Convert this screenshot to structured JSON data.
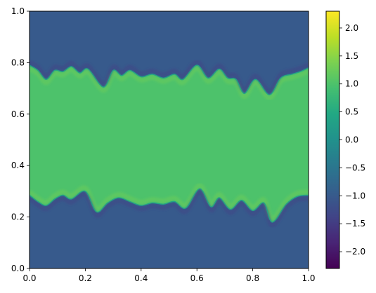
{
  "chart_data": {
    "type": "heatmap",
    "title": "",
    "xlabel": "",
    "ylabel": "",
    "xlim": [
      0,
      1
    ],
    "ylim": [
      0,
      1
    ],
    "grid": false,
    "x_ticks": [
      {
        "value": 0.0,
        "label": "0.0"
      },
      {
        "value": 0.2,
        "label": "0.2"
      },
      {
        "value": 0.4,
        "label": "0.4"
      },
      {
        "value": 0.6,
        "label": "0.6"
      },
      {
        "value": 0.8,
        "label": "0.8"
      },
      {
        "value": 1.0,
        "label": "1.0"
      }
    ],
    "y_ticks": [
      {
        "value": 0.0,
        "label": "0.0"
      },
      {
        "value": 0.2,
        "label": "0.2"
      },
      {
        "value": 0.4,
        "label": "0.4"
      },
      {
        "value": 0.6,
        "label": "0.6"
      },
      {
        "value": 0.8,
        "label": "0.8"
      },
      {
        "value": 1.0,
        "label": "1.0"
      }
    ],
    "colormap": "viridis",
    "colorbar": {
      "range": [
        -2.3,
        2.3
      ],
      "ticks": [
        {
          "value": 2.0,
          "label": "2.0"
        },
        {
          "value": 1.5,
          "label": "1.5"
        },
        {
          "value": 1.0,
          "label": "1.0"
        },
        {
          "value": 0.5,
          "label": "0.5"
        },
        {
          "value": 0.0,
          "label": "0.0"
        },
        {
          "value": -0.5,
          "label": "−0.5"
        },
        {
          "value": -1.0,
          "label": "−1.0"
        },
        {
          "value": -1.5,
          "label": "−1.5"
        },
        {
          "value": -2.0,
          "label": "−2.0"
        }
      ]
    },
    "field": {
      "inner_value": 1.0,
      "outer_value": -1.0,
      "upper_interface": [
        {
          "x": 0.0,
          "y": 0.79
        },
        {
          "x": 0.03,
          "y": 0.77
        },
        {
          "x": 0.06,
          "y": 0.735
        },
        {
          "x": 0.09,
          "y": 0.77
        },
        {
          "x": 0.12,
          "y": 0.765
        },
        {
          "x": 0.15,
          "y": 0.785
        },
        {
          "x": 0.18,
          "y": 0.76
        },
        {
          "x": 0.21,
          "y": 0.775
        },
        {
          "x": 0.265,
          "y": 0.705
        },
        {
          "x": 0.3,
          "y": 0.77
        },
        {
          "x": 0.33,
          "y": 0.75
        },
        {
          "x": 0.36,
          "y": 0.77
        },
        {
          "x": 0.4,
          "y": 0.745
        },
        {
          "x": 0.44,
          "y": 0.755
        },
        {
          "x": 0.48,
          "y": 0.74
        },
        {
          "x": 0.52,
          "y": 0.755
        },
        {
          "x": 0.55,
          "y": 0.735
        },
        {
          "x": 0.6,
          "y": 0.79
        },
        {
          "x": 0.64,
          "y": 0.74
        },
        {
          "x": 0.68,
          "y": 0.775
        },
        {
          "x": 0.71,
          "y": 0.74
        },
        {
          "x": 0.74,
          "y": 0.735
        },
        {
          "x": 0.77,
          "y": 0.68
        },
        {
          "x": 0.81,
          "y": 0.735
        },
        {
          "x": 0.86,
          "y": 0.675
        },
        {
          "x": 0.9,
          "y": 0.74
        },
        {
          "x": 0.94,
          "y": 0.755
        },
        {
          "x": 0.97,
          "y": 0.765
        },
        {
          "x": 1.0,
          "y": 0.78
        }
      ],
      "lower_interface": [
        {
          "x": 0.0,
          "y": 0.285
        },
        {
          "x": 0.03,
          "y": 0.26
        },
        {
          "x": 0.06,
          "y": 0.245
        },
        {
          "x": 0.09,
          "y": 0.27
        },
        {
          "x": 0.12,
          "y": 0.285
        },
        {
          "x": 0.15,
          "y": 0.27
        },
        {
          "x": 0.2,
          "y": 0.3
        },
        {
          "x": 0.24,
          "y": 0.22
        },
        {
          "x": 0.28,
          "y": 0.255
        },
        {
          "x": 0.32,
          "y": 0.275
        },
        {
          "x": 0.36,
          "y": 0.26
        },
        {
          "x": 0.4,
          "y": 0.245
        },
        {
          "x": 0.44,
          "y": 0.255
        },
        {
          "x": 0.48,
          "y": 0.25
        },
        {
          "x": 0.52,
          "y": 0.26
        },
        {
          "x": 0.56,
          "y": 0.235
        },
        {
          "x": 0.61,
          "y": 0.31
        },
        {
          "x": 0.65,
          "y": 0.24
        },
        {
          "x": 0.68,
          "y": 0.275
        },
        {
          "x": 0.72,
          "y": 0.23
        },
        {
          "x": 0.76,
          "y": 0.265
        },
        {
          "x": 0.8,
          "y": 0.225
        },
        {
          "x": 0.84,
          "y": 0.255
        },
        {
          "x": 0.87,
          "y": 0.18
        },
        {
          "x": 0.92,
          "y": 0.25
        },
        {
          "x": 0.96,
          "y": 0.28
        },
        {
          "x": 1.0,
          "y": 0.285
        }
      ]
    }
  }
}
